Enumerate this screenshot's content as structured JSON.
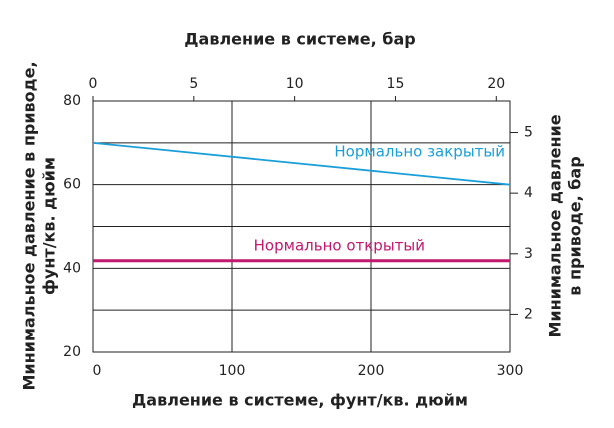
{
  "chart_data": {
    "type": "line",
    "xlabel": "Давление в системе, фунт/кв. дюйм",
    "x2label": "Давление в системе, бар",
    "ylabel": [
      "Минимальное давление в приводе,",
      "фунт/кв. дюйм"
    ],
    "y2label": [
      "Минимальное давление",
      "в приводе, бар"
    ],
    "x": [
      0,
      300
    ],
    "xlim": [
      0,
      300
    ],
    "xticks": [
      0,
      100,
      200,
      300
    ],
    "x2lim": [
      0,
      20.68
    ],
    "x2ticks": [
      0,
      5,
      10,
      15,
      20
    ],
    "ylim": [
      20,
      80
    ],
    "yticks": [
      20,
      40,
      60,
      80
    ],
    "yminor": [
      30,
      50,
      70
    ],
    "y2lim": [
      1.38,
      5.52
    ],
    "y2ticks": [
      2,
      3,
      4,
      5
    ],
    "grid": true,
    "series": [
      {
        "name": "Нормально закрытый",
        "color": "#1a9fd9",
        "values": [
          70,
          60
        ]
      },
      {
        "name": "Нормально открытый",
        "color": "#c2186e",
        "values": [
          41.8,
          41.8
        ]
      }
    ]
  }
}
